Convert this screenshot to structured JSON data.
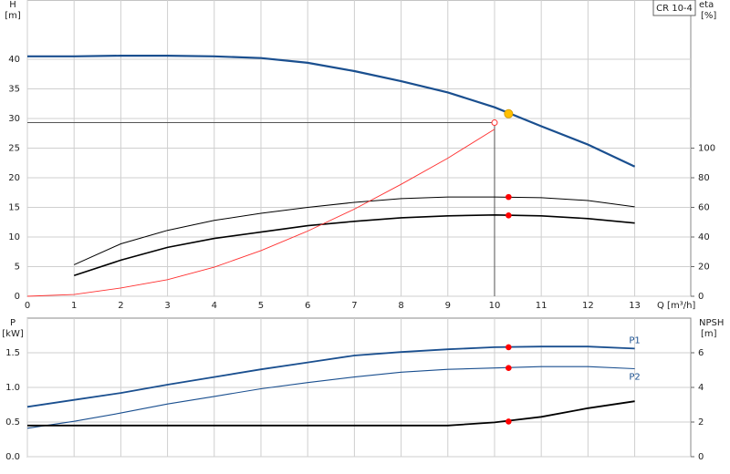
{
  "chart_data": [
    {
      "type": "line",
      "model": "CR 10-4",
      "ylabel": "H",
      "yunit": "[m]",
      "y2label": "eta",
      "y2unit": "[%]",
      "xlabel": "Q [m³/h]",
      "x": [
        0,
        1,
        2,
        3,
        4,
        5,
        6,
        7,
        8,
        9,
        10,
        11,
        12,
        13
      ],
      "xlim": [
        0,
        14.2
      ],
      "xticks": [
        0,
        1,
        2,
        3,
        4,
        5,
        6,
        7,
        8,
        9,
        10,
        11,
        12,
        13
      ],
      "ylim": [
        0,
        50
      ],
      "yticks": [
        0,
        5,
        10,
        15,
        20,
        25,
        30,
        35,
        40
      ],
      "y2lim": [
        0,
        200
      ],
      "y2ticks": [
        0,
        20,
        40,
        60,
        80,
        100
      ],
      "grid": true,
      "series": [
        {
          "color": "#1a4f8f",
          "width": 2.2,
          "values": [
            40.5,
            40.5,
            40.6,
            40.6,
            40.5,
            40.2,
            39.4,
            38,
            36.3,
            34.4,
            31.9,
            28.7,
            25.6,
            21.9
          ],
          "marker": {
            "x": 10.3,
            "value": 30.8,
            "color": "#ffc000"
          }
        },
        {
          "color": "#000000",
          "width": 1,
          "axis": "y2",
          "values": [
            null,
            21.3,
            35.4,
            44.5,
            51.2,
            56,
            60,
            63.4,
            65.9,
            67,
            67,
            66.5,
            64.6,
            60.4
          ],
          "marker": {
            "x": 10.3,
            "value": 67,
            "color": "#ff0000"
          }
        },
        {
          "color": "#000000",
          "width": 1.6,
          "axis": "y2",
          "values": [
            null,
            14,
            24.4,
            33,
            39,
            43.3,
            47.6,
            50.6,
            53,
            54.3,
            54.9,
            54.3,
            52.4,
            49.4
          ],
          "marker": {
            "x": 10.3,
            "value": 54.6,
            "color": "#ff0000"
          }
        },
        {
          "color": "#ff3030",
          "width": 0.9,
          "values": [
            0,
            0.3,
            1.4,
            2.8,
            4.9,
            7.7,
            11,
            14.7,
            18.9,
            23.3,
            28.2,
            null,
            null,
            null
          ]
        }
      ],
      "operating_point": {
        "x": 10,
        "y": 29.3,
        "color": "#ff3030"
      }
    },
    {
      "type": "line",
      "ylabel": "P",
      "yunit": "[kW]",
      "y2label": "NPSH",
      "y2unit": "[m]",
      "x": [
        0,
        1,
        2,
        3,
        4,
        5,
        6,
        7,
        8,
        9,
        10,
        11,
        12,
        13
      ],
      "xlim": [
        0,
        14.2
      ],
      "xticks": [
        0,
        1,
        2,
        3,
        4,
        5,
        6,
        7,
        8,
        9,
        10,
        11,
        12,
        13
      ],
      "xtick_labels": false,
      "ylim": [
        0,
        2
      ],
      "yticks": [
        {
          "value": 0,
          "label": "0.0"
        },
        0.5,
        {
          "value": 1,
          "label": "1.0"
        },
        1.5
      ],
      "y2lim": [
        0,
        8
      ],
      "y2ticks": [
        0,
        2,
        4,
        6
      ],
      "grid": true,
      "series": [
        {
          "name": "P1",
          "color": "#1a4f8f",
          "width": 1.8,
          "values": [
            0.72,
            0.82,
            0.92,
            1.04,
            1.15,
            1.26,
            1.36,
            1.46,
            1.51,
            1.55,
            1.58,
            1.59,
            1.59,
            1.56
          ],
          "marker": {
            "x": 10.3,
            "value": 1.58,
            "color": "#ff0000"
          }
        },
        {
          "name": "P2",
          "color": "#1a4f8f",
          "width": 1.1,
          "values": [
            0.41,
            0.51,
            0.63,
            0.76,
            0.87,
            0.98,
            1.07,
            1.15,
            1.22,
            1.26,
            1.28,
            1.3,
            1.3,
            1.27
          ],
          "marker": {
            "x": 10.3,
            "value": 1.28,
            "color": "#ff0000"
          }
        },
        {
          "color": "#000000",
          "width": 1.8,
          "axis": "y2",
          "values": [
            1.8,
            1.8,
            1.8,
            1.8,
            1.8,
            1.8,
            1.8,
            1.8,
            1.8,
            1.8,
            1.98,
            2.3,
            2.8,
            3.2
          ],
          "marker": {
            "x": 10.3,
            "value": 2.03,
            "color": "#ff0000"
          }
        }
      ]
    }
  ]
}
